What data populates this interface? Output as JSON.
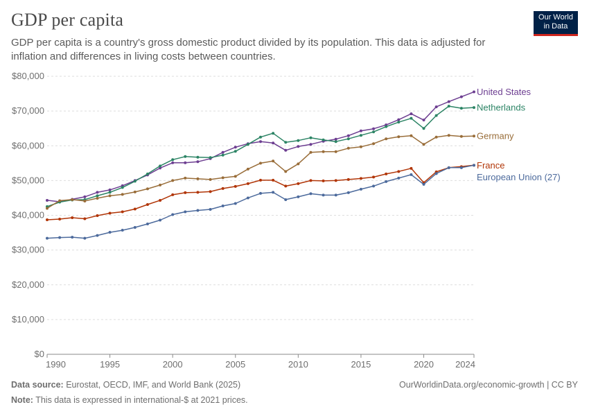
{
  "header": {
    "title": "GDP per capita",
    "subtitle": "GDP per capita is a country's gross domestic product divided by its population. This data is adjusted for inflation and differences in living costs between countries."
  },
  "logo": {
    "line1": "Our World",
    "line2": "in Data"
  },
  "footer": {
    "source_label": "Data source:",
    "source_text": "Eurostat, OECD, IMF, and World Bank (2025)",
    "note_label": "Note:",
    "note_text": "This data is expressed in international-$ at 2021 prices.",
    "credit": "OurWorldinData.org/economic-growth | CC BY"
  },
  "chart_data": {
    "type": "line",
    "title": "GDP per capita",
    "xlim": [
      1990,
      2024
    ],
    "ylim": [
      0,
      80000
    ],
    "x_ticks": [
      1990,
      1995,
      2000,
      2005,
      2010,
      2015,
      2020,
      2024
    ],
    "y_ticks": [
      0,
      10000,
      20000,
      30000,
      40000,
      50000,
      60000,
      70000,
      80000
    ],
    "y_tick_labels": [
      "$0",
      "$10,000",
      "$20,000",
      "$30,000",
      "$40,000",
      "$50,000",
      "$60,000",
      "$70,000",
      "$80,000"
    ],
    "grid": "horizontal dashed",
    "legend": "right (end-of-line labels)",
    "x": [
      1990,
      1991,
      1992,
      1993,
      1994,
      1995,
      1996,
      1997,
      1998,
      1999,
      2000,
      2001,
      2002,
      2003,
      2004,
      2005,
      2006,
      2007,
      2008,
      2009,
      2010,
      2011,
      2012,
      2013,
      2014,
      2015,
      2016,
      2017,
      2018,
      2019,
      2020,
      2021,
      2022,
      2023,
      2024
    ],
    "series": [
      {
        "name": "United States",
        "color": "#6d3e91",
        "values": [
          44300,
          43900,
          44600,
          45300,
          46600,
          47300,
          48500,
          50000,
          51600,
          53600,
          55100,
          55100,
          55400,
          56300,
          58100,
          59600,
          60600,
          61200,
          60800,
          58700,
          59800,
          60400,
          61300,
          61900,
          62900,
          64300,
          64900,
          66000,
          67500,
          69200,
          67400,
          71200,
          72700,
          74100,
          75500
        ]
      },
      {
        "name": "Netherlands",
        "color": "#2c8465",
        "values": [
          42500,
          43800,
          44400,
          44500,
          45600,
          46600,
          48000,
          49800,
          51900,
          54200,
          56000,
          56900,
          56700,
          56600,
          57300,
          58400,
          60400,
          62500,
          63600,
          61000,
          61500,
          62300,
          61700,
          61200,
          62000,
          63000,
          64000,
          65500,
          66800,
          67900,
          65000,
          68700,
          71400,
          70800,
          71000
        ]
      },
      {
        "name": "Germany",
        "color": "#996d39",
        "values": [
          42000,
          44200,
          44500,
          44100,
          44900,
          45600,
          46000,
          46700,
          47600,
          48700,
          50000,
          50700,
          50500,
          50300,
          50800,
          51200,
          53300,
          55000,
          55600,
          52600,
          54800,
          58100,
          58300,
          58300,
          59300,
          59700,
          60600,
          62000,
          62600,
          62900,
          60400,
          62500,
          63000,
          62700,
          62800
        ]
      },
      {
        "name": "France",
        "color": "#b13507",
        "values": [
          38700,
          38900,
          39300,
          39000,
          39900,
          40600,
          41000,
          41800,
          43100,
          44300,
          45900,
          46500,
          46600,
          46800,
          47700,
          48300,
          49100,
          50100,
          50100,
          48400,
          49100,
          50000,
          49900,
          50000,
          50300,
          50600,
          51000,
          51900,
          52600,
          53500,
          49400,
          52500,
          53700,
          54000,
          54400
        ]
      },
      {
        "name": "European Union (27)",
        "color": "#4c6a9c",
        "values": [
          33400,
          33600,
          33700,
          33400,
          34200,
          35100,
          35700,
          36500,
          37500,
          38600,
          40200,
          41000,
          41400,
          41700,
          42700,
          43400,
          45000,
          46300,
          46600,
          44500,
          45300,
          46200,
          45800,
          45800,
          46500,
          47500,
          48400,
          49700,
          50700,
          51700,
          48900,
          52000,
          53700,
          53700,
          54400
        ]
      }
    ]
  }
}
